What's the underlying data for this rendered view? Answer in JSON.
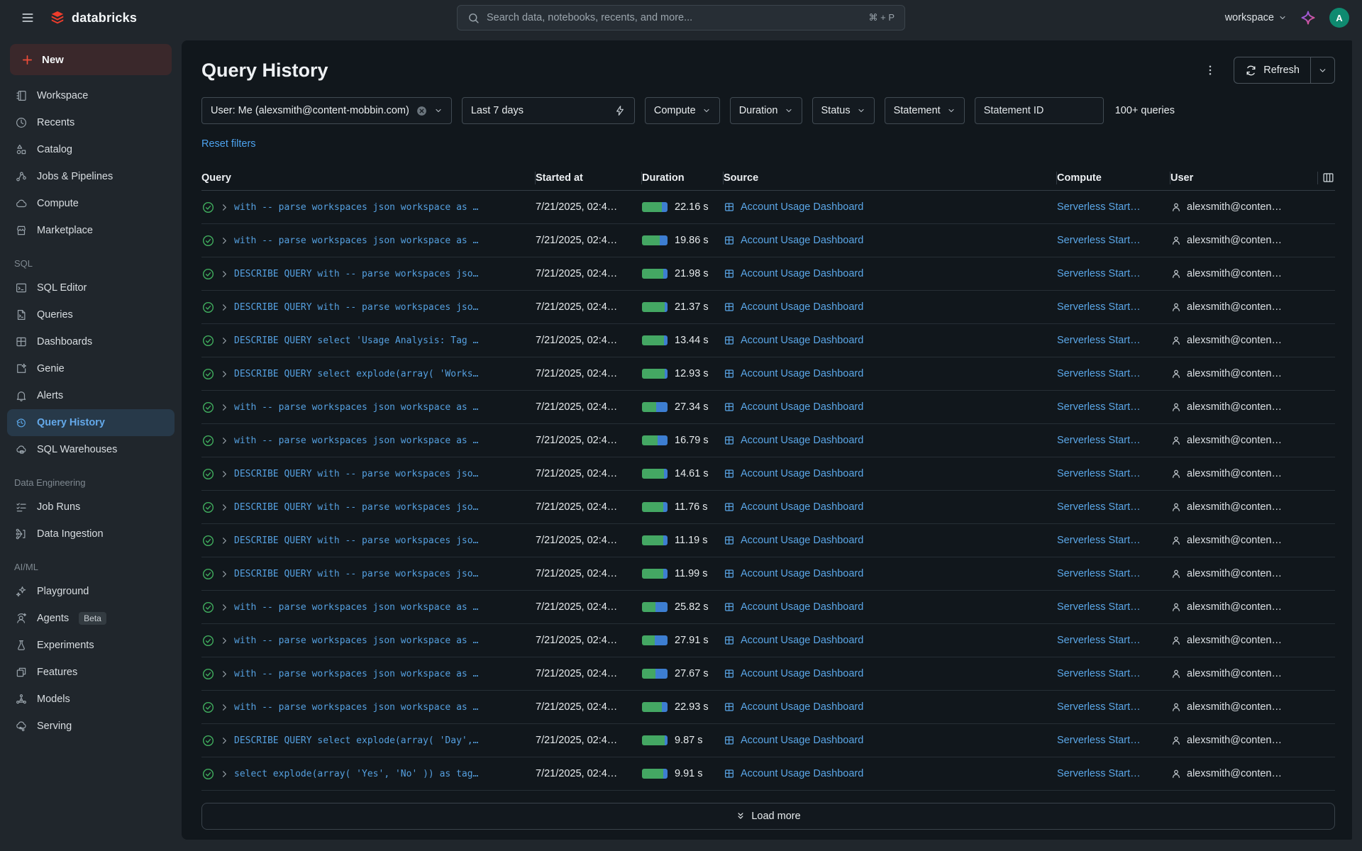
{
  "topbar": {
    "brand": "databricks",
    "search_placeholder": "Search data, notebooks, recents, and more...",
    "search_shortcut": "⌘ + P",
    "workspace_label": "workspace",
    "avatar_initial": "A"
  },
  "sidebar": {
    "new_label": "New",
    "groups": [
      {
        "label": "",
        "items": [
          {
            "label": "Workspace",
            "icon": "workspace"
          },
          {
            "label": "Recents",
            "icon": "recents"
          },
          {
            "label": "Catalog",
            "icon": "catalog"
          },
          {
            "label": "Jobs & Pipelines",
            "icon": "jobs-pipelines"
          },
          {
            "label": "Compute",
            "icon": "compute"
          },
          {
            "label": "Marketplace",
            "icon": "marketplace"
          }
        ]
      },
      {
        "label": "SQL",
        "items": [
          {
            "label": "SQL Editor",
            "icon": "sql-editor"
          },
          {
            "label": "Queries",
            "icon": "queries"
          },
          {
            "label": "Dashboards",
            "icon": "dashboards"
          },
          {
            "label": "Genie",
            "icon": "genie"
          },
          {
            "label": "Alerts",
            "icon": "alerts"
          },
          {
            "label": "Query History",
            "icon": "query-history",
            "active": true
          },
          {
            "label": "SQL Warehouses",
            "icon": "sql-warehouses"
          }
        ]
      },
      {
        "label": "Data Engineering",
        "items": [
          {
            "label": "Job Runs",
            "icon": "job-runs"
          },
          {
            "label": "Data Ingestion",
            "icon": "data-ingestion"
          }
        ]
      },
      {
        "label": "AI/ML",
        "items": [
          {
            "label": "Playground",
            "icon": "playground"
          },
          {
            "label": "Agents",
            "icon": "agents",
            "badge": "Beta"
          },
          {
            "label": "Experiments",
            "icon": "experiments"
          },
          {
            "label": "Features",
            "icon": "features"
          },
          {
            "label": "Models",
            "icon": "models"
          },
          {
            "label": "Serving",
            "icon": "serving"
          }
        ]
      }
    ]
  },
  "page": {
    "title": "Query History",
    "refresh_label": "Refresh",
    "filters": {
      "user": "User: Me (alexsmith@content-mobbin.com)",
      "time_range": "Last 7 days",
      "compute": "Compute",
      "duration": "Duration",
      "status": "Status",
      "statement": "Statement",
      "statement_id_placeholder": "Statement ID"
    },
    "count_label": "100+ queries",
    "reset_label": "Reset filters",
    "table": {
      "columns": [
        "Query",
        "Started at",
        "Duration",
        "Source",
        "Compute",
        "User"
      ],
      "rows": [
        {
          "query": "with -- parse workspaces json workspace as …",
          "started": "7/21/2025, 02:4…",
          "duration": "22.16 s",
          "green_pct": 78,
          "source": "Account Usage Dashboard",
          "compute": "Serverless Start…",
          "user": "alexsmith@conten…"
        },
        {
          "query": "with -- parse workspaces json workspace as …",
          "started": "7/21/2025, 02:4…",
          "duration": "19.86 s",
          "green_pct": 70,
          "source": "Account Usage Dashboard",
          "compute": "Serverless Start…",
          "user": "alexsmith@conten…"
        },
        {
          "query": "DESCRIBE QUERY with -- parse workspaces jso…",
          "started": "7/21/2025, 02:4…",
          "duration": "21.98 s",
          "green_pct": 84,
          "source": "Account Usage Dashboard",
          "compute": "Serverless Start…",
          "user": "alexsmith@conten…"
        },
        {
          "query": "DESCRIBE QUERY with -- parse workspaces jso…",
          "started": "7/21/2025, 02:4…",
          "duration": "21.37 s",
          "green_pct": 88,
          "source": "Account Usage Dashboard",
          "compute": "Serverless Start…",
          "user": "alexsmith@conten…"
        },
        {
          "query": "DESCRIBE QUERY select 'Usage Analysis: Tag …",
          "started": "7/21/2025, 02:4…",
          "duration": "13.44 s",
          "green_pct": 86,
          "source": "Account Usage Dashboard",
          "compute": "Serverless Start…",
          "user": "alexsmith@conten…"
        },
        {
          "query": "DESCRIBE QUERY select explode(array( 'Works…",
          "started": "7/21/2025, 02:4…",
          "duration": "12.93 s",
          "green_pct": 88,
          "source": "Account Usage Dashboard",
          "compute": "Serverless Start…",
          "user": "alexsmith@conten…"
        },
        {
          "query": "with -- parse workspaces json workspace as …",
          "started": "7/21/2025, 02:4…",
          "duration": "27.34 s",
          "green_pct": 55,
          "source": "Account Usage Dashboard",
          "compute": "Serverless Start…",
          "user": "alexsmith@conten…"
        },
        {
          "query": "with -- parse workspaces json workspace as …",
          "started": "7/21/2025, 02:4…",
          "duration": "16.79 s",
          "green_pct": 62,
          "source": "Account Usage Dashboard",
          "compute": "Serverless Start…",
          "user": "alexsmith@conten…"
        },
        {
          "query": "DESCRIBE QUERY with -- parse workspaces jso…",
          "started": "7/21/2025, 02:4…",
          "duration": "14.61 s",
          "green_pct": 86,
          "source": "Account Usage Dashboard",
          "compute": "Serverless Start…",
          "user": "alexsmith@conten…"
        },
        {
          "query": "DESCRIBE QUERY with -- parse workspaces jso…",
          "started": "7/21/2025, 02:4…",
          "duration": "11.76 s",
          "green_pct": 84,
          "source": "Account Usage Dashboard",
          "compute": "Serverless Start…",
          "user": "alexsmith@conten…"
        },
        {
          "query": "DESCRIBE QUERY with -- parse workspaces jso…",
          "started": "7/21/2025, 02:4…",
          "duration": "11.19 s",
          "green_pct": 84,
          "source": "Account Usage Dashboard",
          "compute": "Serverless Start…",
          "user": "alexsmith@conten…"
        },
        {
          "query": "DESCRIBE QUERY with -- parse workspaces jso…",
          "started": "7/21/2025, 02:4…",
          "duration": "11.99 s",
          "green_pct": 84,
          "source": "Account Usage Dashboard",
          "compute": "Serverless Start…",
          "user": "alexsmith@conten…"
        },
        {
          "query": "with -- parse workspaces json workspace as …",
          "started": "7/21/2025, 02:4…",
          "duration": "25.82 s",
          "green_pct": 52,
          "source": "Account Usage Dashboard",
          "compute": "Serverless Start…",
          "user": "alexsmith@conten…"
        },
        {
          "query": "with -- parse workspaces json workspace as …",
          "started": "7/21/2025, 02:4…",
          "duration": "27.91 s",
          "green_pct": 50,
          "source": "Account Usage Dashboard",
          "compute": "Serverless Start…",
          "user": "alexsmith@conten…"
        },
        {
          "query": "with -- parse workspaces json workspace as …",
          "started": "7/21/2025, 02:4…",
          "duration": "27.67 s",
          "green_pct": 52,
          "source": "Account Usage Dashboard",
          "compute": "Serverless Start…",
          "user": "alexsmith@conten…"
        },
        {
          "query": "with -- parse workspaces json workspace as …",
          "started": "7/21/2025, 02:4…",
          "duration": "22.93 s",
          "green_pct": 78,
          "source": "Account Usage Dashboard",
          "compute": "Serverless Start…",
          "user": "alexsmith@conten…"
        },
        {
          "query": "DESCRIBE QUERY select explode(array( 'Day',…",
          "started": "7/21/2025, 02:4…",
          "duration": "9.87 s",
          "green_pct": 88,
          "source": "Account Usage Dashboard",
          "compute": "Serverless Start…",
          "user": "alexsmith@conten…"
        },
        {
          "query": "select explode(array( 'Yes', 'No' )) as tag…",
          "started": "7/21/2025, 02:4…",
          "duration": "9.91 s",
          "green_pct": 84,
          "source": "Account Usage Dashboard",
          "compute": "Serverless Start…",
          "user": "alexsmith@conten…"
        }
      ]
    },
    "load_more_label": "Load more"
  },
  "colors": {
    "accent_blue": "#5BA7E8",
    "success_green": "#3FA95C",
    "bar_green": "#44A763",
    "bar_blue": "#3D7ED1",
    "brand_red": "#EE3D2C"
  }
}
